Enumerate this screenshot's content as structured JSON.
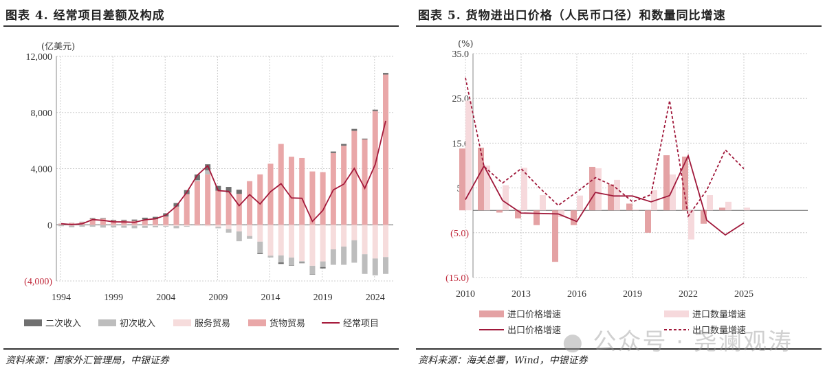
{
  "left": {
    "title": "图表 4. 经常项目差额及构成",
    "source": "资料来源：国家外汇管理局，中银证券"
  },
  "right": {
    "title": "图表 5. 货物进出口价格（人民币口径）和数量同比增速",
    "source": "资料来源：海关总署，Wind，中银证券"
  },
  "watermark": "公众号 · 尧澜观涛",
  "chart_data": [
    {
      "type": "bar",
      "stacked": true,
      "unit_label": "(亿美元)",
      "ylim": [
        -4000,
        12000
      ],
      "yticks": [
        12000,
        8000,
        4000,
        0,
        -4000
      ],
      "ytick_labels": [
        "12,000",
        "8,000",
        "4,000",
        "0",
        "(4,000)"
      ],
      "xtick_labels": [
        "1994",
        "1999",
        "2004",
        "2009",
        "2014",
        "2019",
        "2024"
      ],
      "grid": true,
      "legend": "bottom",
      "x": [
        1994,
        1995,
        1996,
        1997,
        1998,
        1999,
        2000,
        2001,
        2002,
        2003,
        2004,
        2005,
        2006,
        2007,
        2008,
        2009,
        2010,
        2011,
        2012,
        2013,
        2014,
        2015,
        2016,
        2017,
        2018,
        2019,
        2020,
        2021,
        2022,
        2023,
        2024,
        2025
      ],
      "series": [
        {
          "name": "二次收入",
          "kind": "bar",
          "color": "#707070",
          "values": [
            10,
            10,
            20,
            50,
            40,
            50,
            60,
            90,
            130,
            170,
            230,
            250,
            290,
            390,
            430,
            340,
            400,
            300,
            0,
            -80,
            0,
            -110,
            -30,
            -50,
            -30,
            -100,
            110,
            130,
            140,
            60,
            100,
            120
          ]
        },
        {
          "name": "初次收入",
          "kind": "bar",
          "color": "#bdbdbd",
          "values": [
            -100,
            -120,
            -120,
            -110,
            -170,
            -140,
            -150,
            -190,
            -150,
            -100,
            -50,
            -160,
            -50,
            80,
            280,
            -100,
            -260,
            -700,
            -200,
            -800,
            -130,
            -500,
            -550,
            -100,
            -600,
            -400,
            -1100,
            -1300,
            -1600,
            -1400,
            -1200,
            -1200
          ]
        },
        {
          "name": "服务贸易",
          "kind": "bar",
          "color": "#f6dcdc",
          "values": [
            0,
            -60,
            -20,
            -30,
            -30,
            -50,
            -60,
            -60,
            -70,
            -80,
            -90,
            -90,
            -90,
            -80,
            -100,
            -150,
            -300,
            -470,
            -800,
            -1200,
            -2200,
            -2180,
            -2330,
            -2590,
            -2920,
            -2610,
            -1750,
            -1550,
            -1100,
            -2100,
            -2400,
            -2300
          ]
        },
        {
          "name": "货物贸易",
          "kind": "bar",
          "color": "#e9a7a8",
          "values": [
            73,
            128,
            195,
            428,
            438,
            306,
            299,
            282,
            377,
            398,
            590,
            1300,
            2180,
            3110,
            3600,
            2430,
            2300,
            2200,
            3110,
            3590,
            4350,
            5760,
            4850,
            4760,
            3800,
            3750,
            5110,
            5630,
            6690,
            6080,
            8100,
            10700
          ]
        },
        {
          "name": "经常项目",
          "kind": "line",
          "color": "#a5193a",
          "values": [
            77,
            16,
            72,
            370,
            315,
            211,
            204,
            174,
            354,
            431,
            689,
            1324,
            2318,
            3532,
            4206,
            2433,
            2378,
            1361,
            2154,
            1482,
            2360,
            2930,
            1913,
            1887,
            241,
            1029,
            2488,
            2900,
            4019,
            2600,
            4300,
            7400
          ]
        }
      ]
    },
    {
      "type": "bar",
      "unit_label": "(%)",
      "ylim": [
        -15,
        35
      ],
      "yticks": [
        35,
        25,
        15,
        5,
        -5,
        -15
      ],
      "ytick_labels": [
        "35.0",
        "25.0",
        "15.0",
        "5.0",
        "(5.0)",
        "(15.0)"
      ],
      "xtick_labels": [
        "2010",
        "2013",
        "2016",
        "2019",
        "2022",
        "2025"
      ],
      "grid": true,
      "legend": "bottom",
      "x": [
        2010,
        2011,
        2012,
        2013,
        2014,
        2015,
        2016,
        2017,
        2018,
        2019,
        2020,
        2021,
        2022,
        2023,
        2024,
        2025
      ],
      "series": [
        {
          "name": "进口价格增速",
          "kind": "bar",
          "color": "#e4a2a4",
          "values": [
            13.8,
            14.0,
            -0.5,
            -1.8,
            -3.3,
            -11.5,
            -3.3,
            9.7,
            5.8,
            1.5,
            -5.0,
            12.3,
            12.0,
            -3.0,
            0.6,
            null
          ]
        },
        {
          "name": "进口数量增速",
          "kind": "bar",
          "color": "#f6d9dc",
          "values": [
            24.5,
            10.0,
            5.6,
            9.5,
            3.4,
            -1.5,
            3.3,
            9.4,
            6.8,
            0.2,
            4.5,
            8.0,
            -6.5,
            3.4,
            1.9,
            0.6
          ]
        },
        {
          "name": "出口价格增速",
          "kind": "line",
          "dash": false,
          "color": "#a0183a",
          "values": [
            2.4,
            9.9,
            2.2,
            -0.6,
            -0.7,
            -0.8,
            -2.5,
            4.0,
            3.2,
            3.2,
            1.9,
            3.3,
            12.2,
            -2.2,
            -5.5,
            -2.8
          ]
        },
        {
          "name": "出口数量增速",
          "kind": "line",
          "dash": true,
          "color": "#a0183a",
          "values": [
            29.6,
            9.8,
            6.1,
            9.3,
            5.0,
            1.1,
            4.1,
            7.3,
            5.4,
            1.9,
            3.5,
            24.5,
            -1.3,
            4.5,
            13.5,
            9.3
          ]
        }
      ]
    }
  ]
}
